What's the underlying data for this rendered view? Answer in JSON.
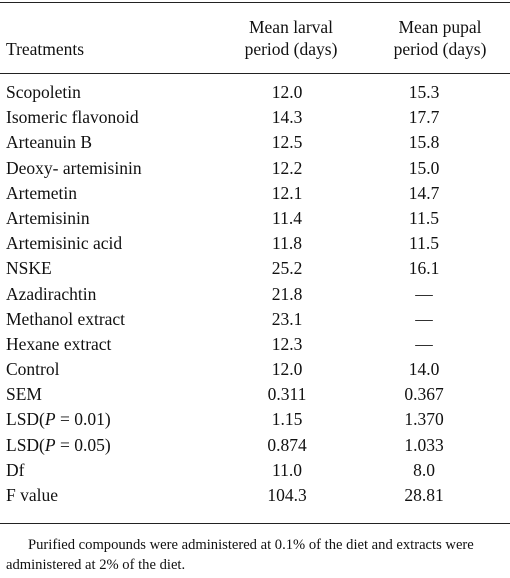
{
  "table": {
    "headers": {
      "treatment": "Treatments",
      "larval_line1": "Mean larval",
      "larval_line2": "period (days)",
      "pupal_line1": "Mean pupal",
      "pupal_line2": "period (days)"
    },
    "rows": [
      {
        "name": "Scopoletin",
        "larval": "12.0",
        "pupal": "15.3"
      },
      {
        "name": "Isomeric flavonoid",
        "larval": "14.3",
        "pupal": "17.7"
      },
      {
        "name": "Arteanuin B",
        "larval": "12.5",
        "pupal": "15.8"
      },
      {
        "name": "Deoxy- artemisinin",
        "larval": "12.2",
        "pupal": "15.0"
      },
      {
        "name": "Artemetin",
        "larval": "12.1",
        "pupal": "14.7"
      },
      {
        "name": "Artemisinin",
        "larval": "11.4",
        "pupal": "11.5"
      },
      {
        "name": "Artemisinic acid",
        "larval": "11.8",
        "pupal": "11.5"
      },
      {
        "name": "NSKE",
        "larval": "25.2",
        "pupal": "16.1"
      },
      {
        "name": "Azadirachtin",
        "larval": "21.8",
        "pupal": "—"
      },
      {
        "name": "Methanol extract",
        "larval": "23.1",
        "pupal": "—"
      },
      {
        "name": "Hexane extract",
        "larval": "12.3",
        "pupal": "—"
      },
      {
        "name": "Control",
        "larval": "12.0",
        "pupal": "14.0"
      },
      {
        "name": "SEM",
        "larval": "0.311",
        "pupal": "0.367"
      },
      {
        "name": "LSD(P = 0.01)",
        "larval": "1.15",
        "pupal": "1.370"
      },
      {
        "name": "LSD(P = 0.05)",
        "larval": "0.874",
        "pupal": "1.033"
      },
      {
        "name": "Df",
        "larval": "11.0",
        "pupal": "8.0"
      },
      {
        "name": "F value",
        "larval": "104.3",
        "pupal": "28.81"
      }
    ]
  },
  "footnote": "Purified compounds were administered at 0.1% of the diet and extracts were administered at 2% of the diet."
}
